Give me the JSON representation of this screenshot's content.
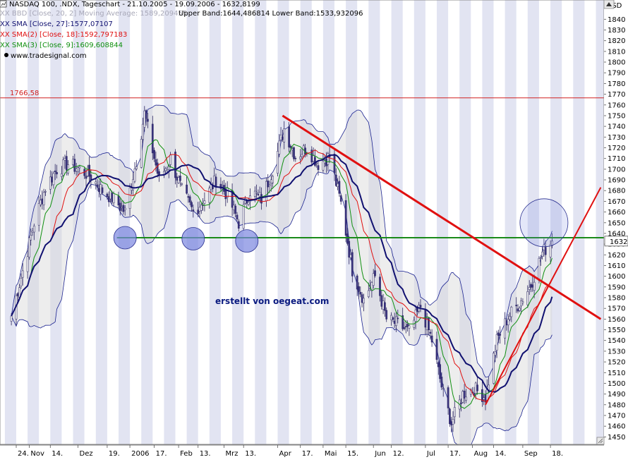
{
  "header": {
    "title": "NASDAQ 100, .NDX, Tageschart - 21.10.2005 - 19.09.2006 - 1632,8199",
    "bb_line": "XX BBD [Close, 20, 2] Moving Average: 1589,209455",
    "bb_bands": "Upper Band:1644,486814 Lower Band:1533,932096",
    "sma27": "XX SMA [Close, 27]:1577,07107",
    "sma18": "XX SMA(2) [Close, 18]:1592,797183",
    "sma9": "XX SMA(3) [Close, 9]:1609,608844",
    "website": "www.tradesignal.com"
  },
  "watermark": "erstellt von oegeat.com",
  "axis": {
    "unit": "USD",
    "price_tag": "1632"
  },
  "resistance_label": "1766,58",
  "colors": {
    "background": "#ffffff",
    "stripe": "#e2e4f2",
    "band_fill": "#d8d8d8",
    "band_fill_alt": "#efefdf",
    "band_line": "#1a2290",
    "candle_up": "#f4f4f4",
    "candle_down": "#3a3480",
    "sma27": "#101070",
    "sma18": "#e01010",
    "sma9": "#109010",
    "resistance": "#d02020",
    "support": "#1a8a1a",
    "trendline": "#e01010",
    "circle_fill": "#7a86e0",
    "watermark": "#0a1a80"
  },
  "chart_data": {
    "type": "candlestick",
    "title": "NASDAQ 100, .NDX, Tageschart - 21.10.2005 - 19.09.2006 - 1632,8199",
    "ylabel": "USD",
    "ylim": [
      1443,
      1858
    ],
    "y_ticks": [
      1450,
      1460,
      1470,
      1480,
      1490,
      1500,
      1510,
      1520,
      1530,
      1540,
      1550,
      1560,
      1570,
      1580,
      1590,
      1600,
      1610,
      1620,
      1630,
      1640,
      1650,
      1660,
      1670,
      1680,
      1690,
      1700,
      1710,
      1720,
      1730,
      1740,
      1750,
      1760,
      1770,
      1780,
      1790,
      1800,
      1810,
      1820,
      1830,
      1840
    ],
    "x_ticks": [
      "24.",
      "Nov",
      "14.",
      "Dez",
      "19.",
      "2006",
      "17.",
      "Feb",
      "13.",
      "Mrz",
      "13.",
      "Apr",
      "17.",
      "Mai",
      "15.",
      "Jun",
      "12.",
      "Jul",
      "17.",
      "Aug",
      "14.",
      "Sep",
      "18."
    ],
    "x_tick_dates": [
      "2005-10-24",
      "2005-11-01",
      "2005-11-14",
      "2005-12-01",
      "2005-12-19",
      "2006-01-02",
      "2006-01-17",
      "2006-02-01",
      "2006-02-13",
      "2006-03-01",
      "2006-03-13",
      "2006-04-03",
      "2006-04-17",
      "2006-05-01",
      "2006-05-15",
      "2006-06-01",
      "2006-06-12",
      "2006-07-03",
      "2006-07-17",
      "2006-08-01",
      "2006-08-14",
      "2006-09-01",
      "2006-09-18"
    ],
    "close_anchors": [
      [
        "2005-10-21",
        1563
      ],
      [
        "2005-10-28",
        1605
      ],
      [
        "2005-11-04",
        1650
      ],
      [
        "2005-11-11",
        1683
      ],
      [
        "2005-11-18",
        1700
      ],
      [
        "2005-11-25",
        1705
      ],
      [
        "2005-12-02",
        1700
      ],
      [
        "2005-12-09",
        1693
      ],
      [
        "2005-12-16",
        1680
      ],
      [
        "2005-12-23",
        1672
      ],
      [
        "2005-12-30",
        1660
      ],
      [
        "2006-01-06",
        1708
      ],
      [
        "2006-01-11",
        1752
      ],
      [
        "2006-01-20",
        1690
      ],
      [
        "2006-01-27",
        1710
      ],
      [
        "2006-02-03",
        1680
      ],
      [
        "2006-02-10",
        1660
      ],
      [
        "2006-02-17",
        1672
      ],
      [
        "2006-02-24",
        1690
      ],
      [
        "2006-03-03",
        1676
      ],
      [
        "2006-03-10",
        1650
      ],
      [
        "2006-03-17",
        1680
      ],
      [
        "2006-03-24",
        1672
      ],
      [
        "2006-03-31",
        1700
      ],
      [
        "2006-04-07",
        1738
      ],
      [
        "2006-04-14",
        1712
      ],
      [
        "2006-04-21",
        1720
      ],
      [
        "2006-04-28",
        1705
      ],
      [
        "2006-05-05",
        1712
      ],
      [
        "2006-05-12",
        1668
      ],
      [
        "2006-05-19",
        1606
      ],
      [
        "2006-05-26",
        1578
      ],
      [
        "2006-06-02",
        1600
      ],
      [
        "2006-06-09",
        1560
      ],
      [
        "2006-06-16",
        1555
      ],
      [
        "2006-06-23",
        1548
      ],
      [
        "2006-06-30",
        1572
      ],
      [
        "2006-07-07",
        1540
      ],
      [
        "2006-07-14",
        1490
      ],
      [
        "2006-07-19",
        1463
      ],
      [
        "2006-07-26",
        1490
      ],
      [
        "2006-08-02",
        1495
      ],
      [
        "2006-08-09",
        1487
      ],
      [
        "2006-08-16",
        1540
      ],
      [
        "2006-08-23",
        1562
      ],
      [
        "2006-08-30",
        1575
      ],
      [
        "2006-09-06",
        1592
      ],
      [
        "2006-09-13",
        1622
      ],
      [
        "2006-09-19",
        1633
      ]
    ],
    "last_values": {
      "close": 1632.8199,
      "bb_middle": 1589.209455,
      "bb_upper": 1644.486814,
      "bb_lower": 1533.932096,
      "sma27": 1577.07107,
      "sma18": 1592.797183,
      "sma9": 1609.608844
    },
    "resistance": 1766.58,
    "support": 1636,
    "downtrend": [
      [
        "2006-04-06",
        1750
      ],
      [
        "2006-10-19",
        1560
      ]
    ],
    "uptrend": [
      [
        "2006-08-09",
        1480
      ],
      [
        "2006-10-19",
        1683
      ]
    ],
    "circles": [
      {
        "date": "2005-12-30",
        "price": 1636
      },
      {
        "date": "2006-02-10",
        "price": 1635
      },
      {
        "date": "2006-03-15",
        "price": 1633
      },
      {
        "date": "2006-09-14",
        "price": 1650
      }
    ]
  }
}
